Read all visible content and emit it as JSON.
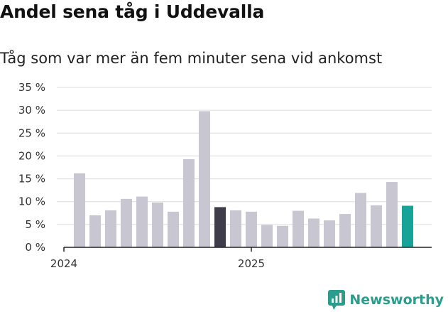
{
  "header": {
    "title": "Andel sena tåg i Uddevalla",
    "subtitle": "Tåg som var mer än fem minuter sena vid ankomst"
  },
  "brand": {
    "name": "Newsworthy",
    "icon": "newsworthy-logo-icon"
  },
  "colors": {
    "default_bar": "#c8c6d1",
    "highlight_bar": "#3f3d4a",
    "latest_bar": "#17a398",
    "grid": "#dcdcdc",
    "axis": "#222222",
    "brand": "#2a9d8f"
  },
  "chart_data": {
    "type": "bar",
    "title": "Andel sena tåg i Uddevalla",
    "subtitle": "Tåg som var mer än fem minuter sena vid ankomst",
    "xlabel": "",
    "ylabel": "",
    "ylim": [
      0,
      35
    ],
    "yticks": [
      0,
      5,
      10,
      15,
      20,
      25,
      30,
      35
    ],
    "ytick_labels": [
      "0 %",
      "5 %",
      "10 %",
      "15 %",
      "20 %",
      "25 %",
      "30 %",
      "35 %"
    ],
    "grid": true,
    "categories": [
      "2024-01",
      "2024-02",
      "2024-03",
      "2024-04",
      "2024-05",
      "2024-06",
      "2024-07",
      "2024-08",
      "2024-09",
      "2024-10",
      "2024-11",
      "2024-12",
      "2025-01",
      "2025-02",
      "2025-03",
      "2025-04",
      "2025-05",
      "2025-06",
      "2025-07",
      "2025-08",
      "2025-09",
      "2025-10",
      "2025-11"
    ],
    "xtick_labels": [
      {
        "index": 0,
        "label": "2024"
      },
      {
        "index": 12,
        "label": "2025"
      }
    ],
    "values": [
      16.2,
      7.0,
      8.1,
      10.6,
      11.1,
      9.8,
      7.8,
      19.3,
      29.8,
      8.8,
      8.1,
      7.8,
      4.9,
      4.7,
      8.0,
      6.3,
      5.9,
      7.3,
      11.9,
      9.2,
      14.3,
      9.1,
      null
    ],
    "bar_roles": [
      "default",
      "default",
      "default",
      "default",
      "default",
      "default",
      "default",
      "default",
      "default",
      "highlight",
      "default",
      "default",
      "default",
      "default",
      "default",
      "default",
      "default",
      "default",
      "default",
      "default",
      "default",
      "latest",
      "none"
    ]
  }
}
